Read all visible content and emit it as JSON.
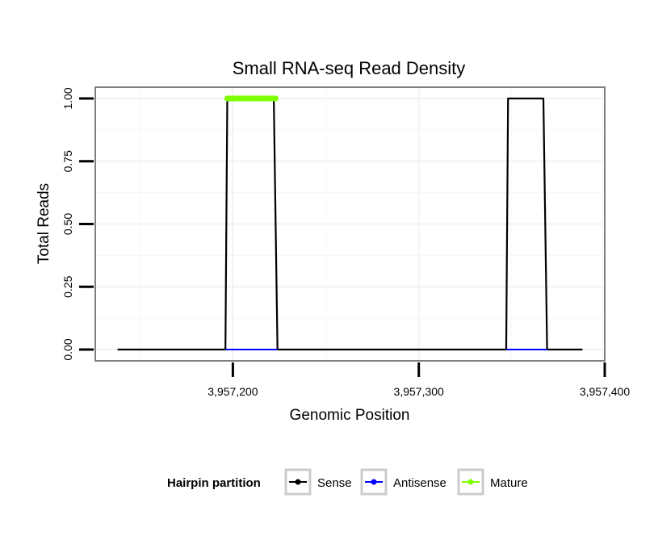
{
  "chart_data": {
    "type": "line",
    "title": "Small RNA-seq Read Density",
    "xlabel": "Genomic Position",
    "ylabel": "Total Reads",
    "xlim": [
      3957126,
      3957400
    ],
    "ylim": [
      -0.045,
      1.045
    ],
    "x_ticks": [
      3957200,
      3957300,
      3957400
    ],
    "x_tick_labels": [
      "3,957,200",
      "3,957,300",
      "3,957,400"
    ],
    "y_ticks": [
      0,
      0.25,
      0.5,
      0.75,
      1
    ],
    "y_tick_labels": [
      "0.00",
      "0.25",
      "0.50",
      "0.75",
      "1.00"
    ],
    "grid": true,
    "series": [
      {
        "name": "Sense",
        "color": "#000000",
        "x": [
          3957138,
          3957196,
          3957197,
          3957222,
          3957224,
          3957347,
          3957348,
          3957367,
          3957369,
          3957388
        ],
        "y": [
          0,
          0,
          1,
          1,
          0,
          0,
          1,
          1,
          0,
          0
        ]
      },
      {
        "name": "Antisense",
        "color": "#0000ff",
        "x": [
          3957196,
          3957224,
          null,
          3957347,
          3957369
        ],
        "y": [
          0,
          0,
          null,
          0,
          0
        ]
      },
      {
        "name": "Mature",
        "color": "#7fff00",
        "x": [
          3957197,
          3957223
        ],
        "y": [
          1,
          1
        ]
      }
    ],
    "legend": {
      "title": "Hairpin partition",
      "position": "bottom",
      "entries": [
        "Sense",
        "Antisense",
        "Mature"
      ]
    }
  }
}
